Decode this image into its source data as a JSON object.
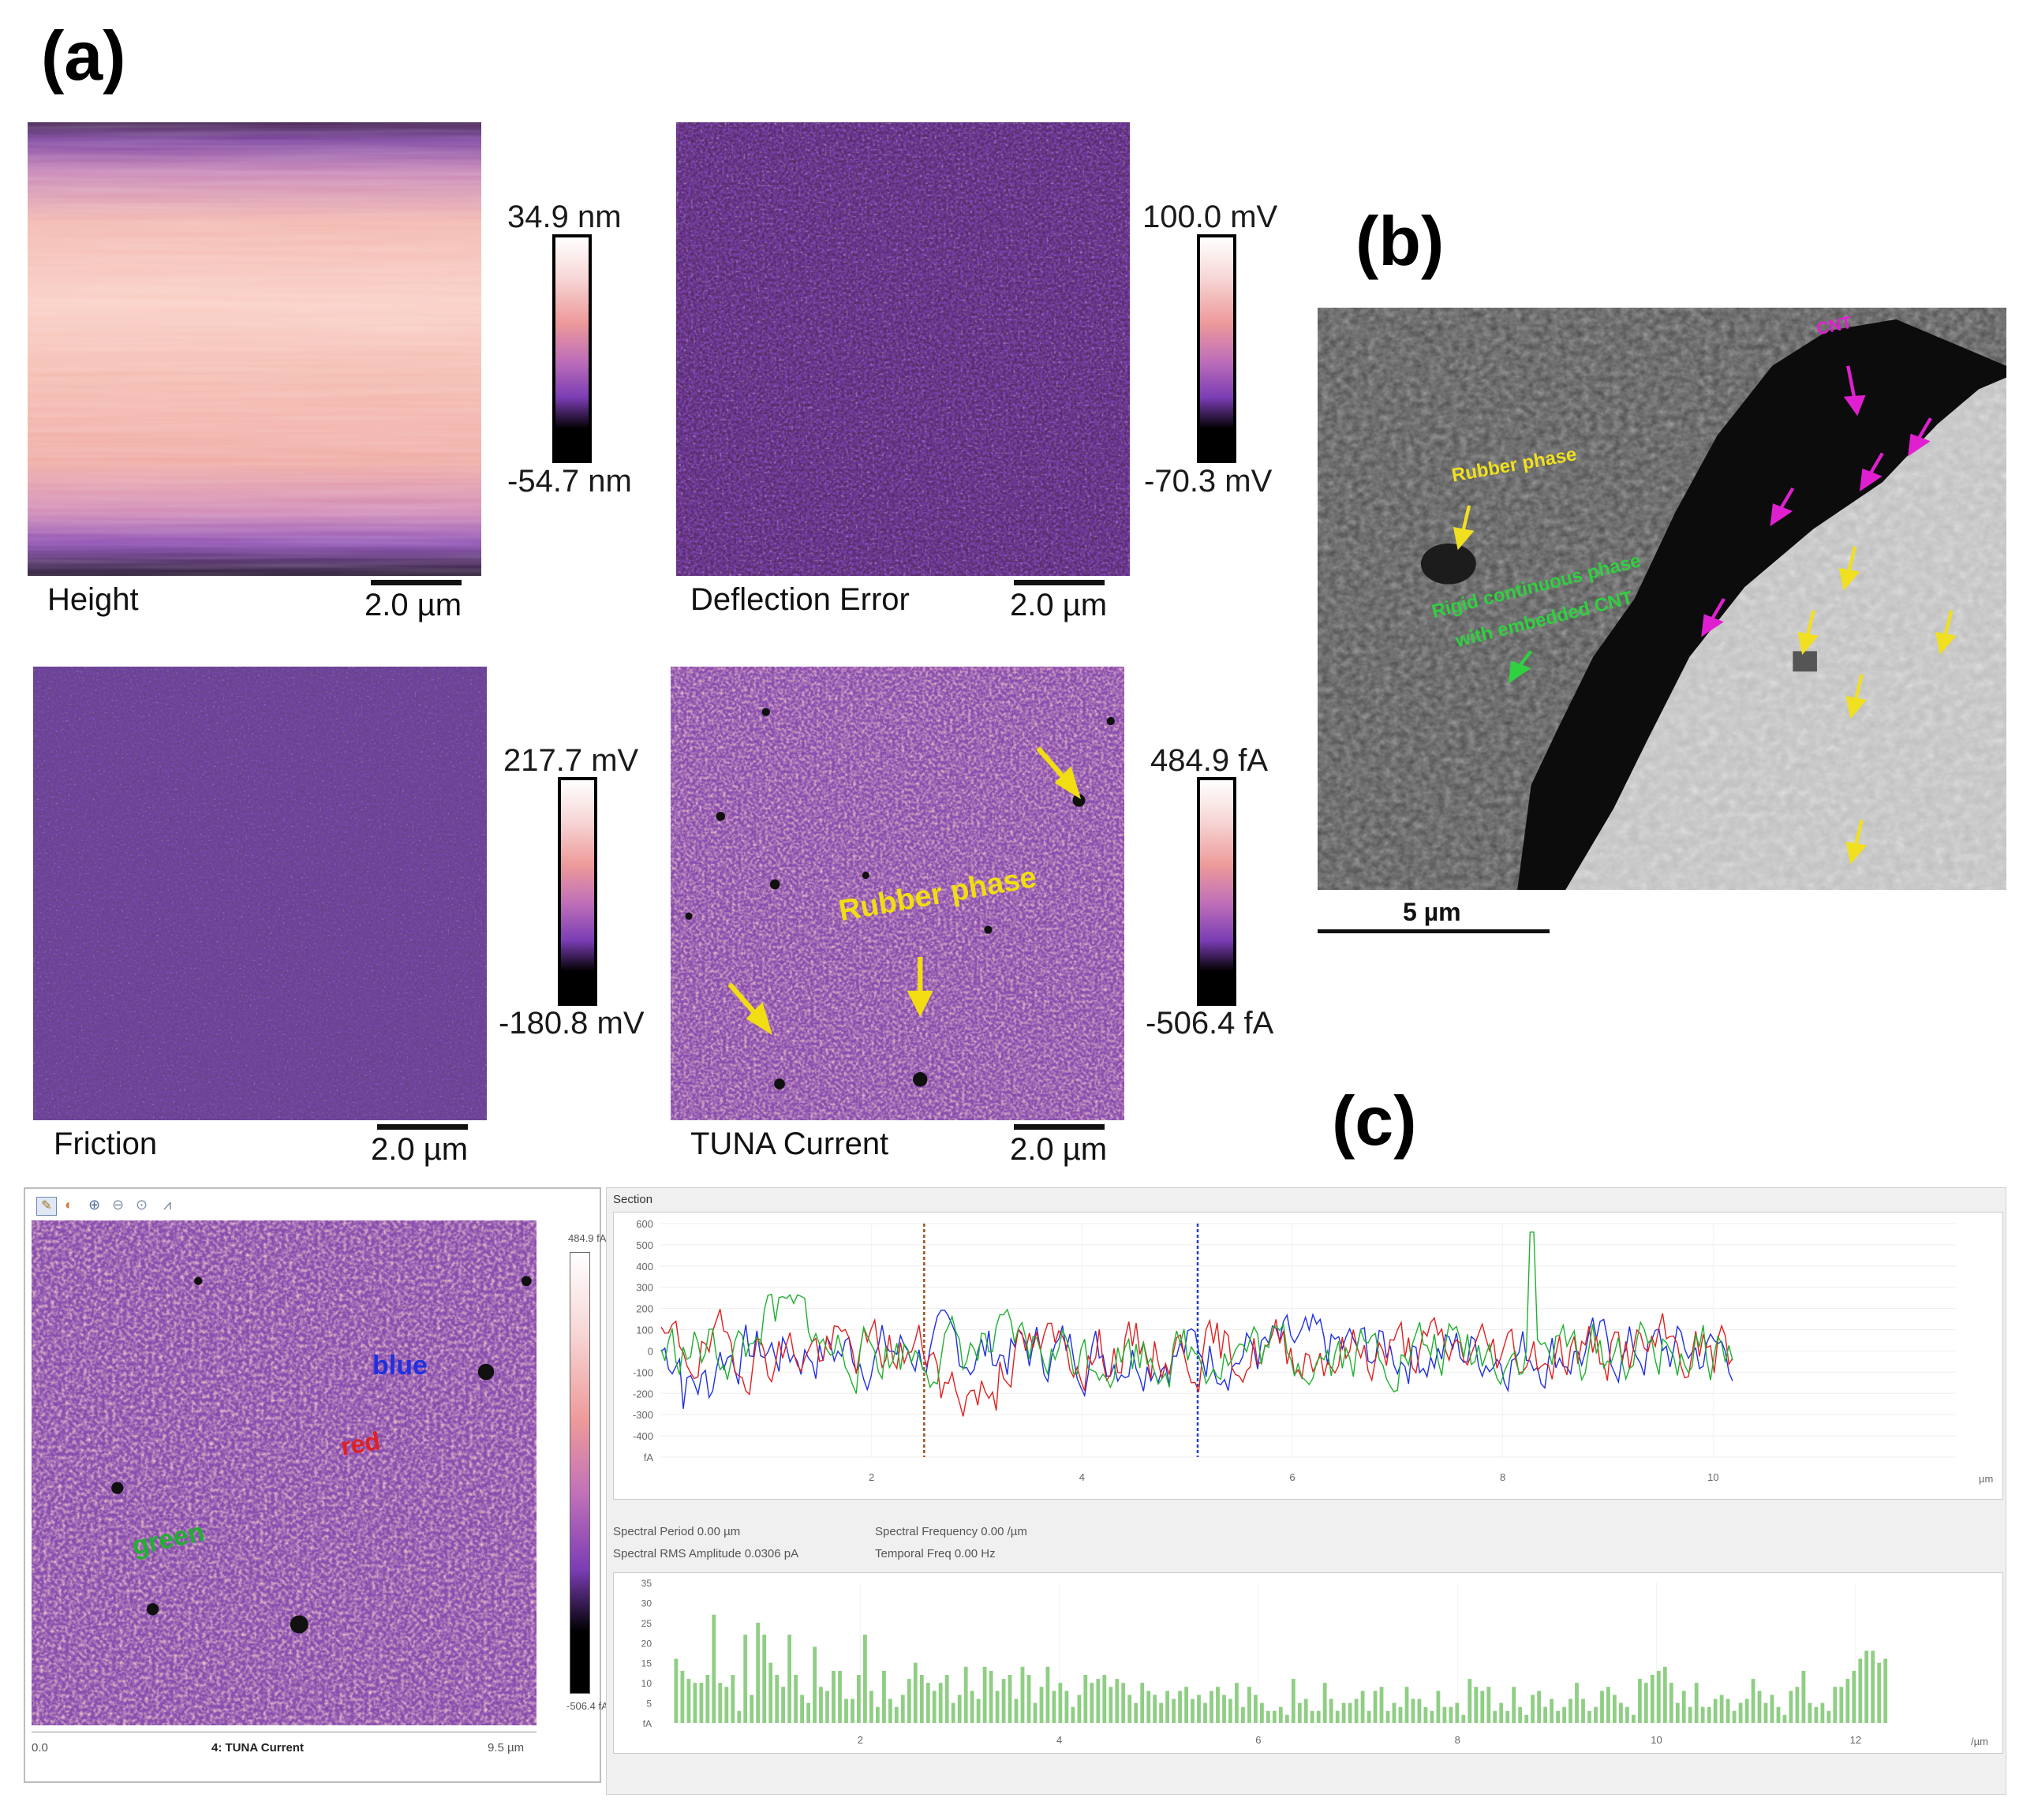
{
  "panel_labels": {
    "a": "(a)",
    "b": "(b)",
    "c": "(c)"
  },
  "afm_images": [
    {
      "id": "height",
      "title": "Height",
      "scale_bar": "2.0 µm",
      "color_max": "34.9 nm",
      "color_min": "-54.7 nm"
    },
    {
      "id": "deflection",
      "title": "Deflection Error",
      "scale_bar": "2.0 µm",
      "color_max": "100.0 mV",
      "color_min": "-70.3 mV"
    },
    {
      "id": "friction",
      "title": "Friction",
      "scale_bar": "2.0 µm",
      "color_max": "217.7 mV",
      "color_min": "-180.8 mV"
    },
    {
      "id": "tuna",
      "title": "TUNA Current",
      "scale_bar": "2.0 µm",
      "color_max": "484.9 fA",
      "color_min": "-506.4 fA",
      "annotation": "Rubber phase"
    }
  ],
  "sem": {
    "scale_bar": "5 µm",
    "annotations": {
      "cnt": "CNT",
      "rubber": "Rubber phase",
      "rigid_line1": "Rigid continuous phase",
      "rigid_line2": "with embedded CNT"
    },
    "colors": {
      "cnt": "#e020d0",
      "rubber": "#f0e020",
      "rigid": "#30d040"
    }
  },
  "software": {
    "toolbar_icons": [
      "pencil-icon",
      "palette-icon",
      "zoom-in-icon",
      "zoom-out-icon",
      "zoom-reset-icon",
      "profile-icon"
    ],
    "image_title": "4: TUNA Current",
    "x_start": "0.0",
    "x_end": "9.5 µm",
    "colorbar_max": "484.9 fA",
    "colorbar_min": "-506.4 fA",
    "line_labels": {
      "blue": "blue",
      "red": "red",
      "green": "green"
    },
    "line_colors": {
      "blue": "#2030e0",
      "red": "#e02020",
      "green": "#20b030"
    },
    "section_title": "Section",
    "spectral_period": "Spectral Period 0.00 µm",
    "spectral_frequency": "Spectral Frequency 0.00 /µm",
    "spectral_rms": "Spectral RMS Amplitude 0.0306 pA",
    "temporal_freq": "Temporal Freq 0.00 Hz"
  },
  "chart_data": [
    {
      "type": "line",
      "ylabel": "fA",
      "xlabel": "µm",
      "y_ticks": [
        "600",
        "500",
        "400",
        "300",
        "200",
        "100",
        "0",
        "-100",
        "-200",
        "-300",
        "-400",
        "fA"
      ],
      "x_ticks": [
        "2",
        "4",
        "6",
        "8",
        "10"
      ],
      "xlim": [
        0,
        12.3
      ],
      "ylim": [
        -500,
        600
      ],
      "cursors": [
        2.5,
        5.1
      ],
      "series": [
        {
          "name": "blue",
          "color": "#2030e0"
        },
        {
          "name": "red",
          "color": "#e02020"
        },
        {
          "name": "green",
          "color": "#20b030"
        }
      ]
    },
    {
      "type": "bar",
      "ylabel": "fA",
      "xlabel": "/µm",
      "y_ticks": [
        "35",
        "30",
        "25",
        "20",
        "15",
        "10",
        "5",
        "fA"
      ],
      "x_ticks": [
        "2",
        "4",
        "6",
        "8",
        "10",
        "12"
      ],
      "xlim": [
        0,
        13
      ],
      "ylim": [
        0,
        35
      ],
      "values": [
        16,
        13,
        11,
        10,
        10,
        12,
        27,
        10,
        9,
        12,
        3,
        22,
        7,
        25,
        22,
        15,
        12,
        9,
        22,
        12,
        7,
        5,
        19,
        9,
        8,
        13,
        13,
        6,
        6,
        12,
        22,
        8,
        4,
        13,
        6,
        4,
        7,
        11,
        15,
        12,
        10,
        8,
        10,
        12,
        5,
        7,
        14,
        8,
        6,
        14,
        13,
        8,
        11,
        12,
        6,
        14,
        12,
        5,
        9,
        14,
        8,
        10,
        8,
        4,
        7,
        12,
        10,
        11,
        12,
        9,
        11,
        10,
        7,
        5,
        10,
        8,
        7,
        5,
        8,
        6,
        8,
        9,
        6,
        7,
        5,
        8,
        9,
        7,
        6,
        10,
        4,
        9,
        7,
        5,
        3,
        3,
        4,
        2,
        11,
        5,
        6,
        3,
        3,
        10,
        6,
        3,
        5,
        5,
        6,
        8,
        3,
        8,
        9,
        3,
        5,
        4,
        9,
        6,
        6,
        4,
        3,
        8,
        4,
        4,
        5,
        2,
        11,
        9,
        8,
        9,
        3,
        5,
        3,
        9,
        4,
        2,
        7,
        8,
        4,
        6,
        3,
        4,
        6,
        10,
        6,
        3,
        4,
        8,
        9,
        7,
        5,
        4,
        2,
        11,
        10,
        12,
        13,
        14,
        10,
        5,
        8,
        4,
        10,
        4,
        4,
        6,
        7,
        6,
        3,
        5,
        6,
        11,
        8,
        5,
        7,
        4,
        2,
        8,
        9,
        13,
        5,
        4,
        5,
        3,
        9,
        9,
        11,
        13,
        16,
        18,
        18,
        15,
        16
      ]
    }
  ]
}
